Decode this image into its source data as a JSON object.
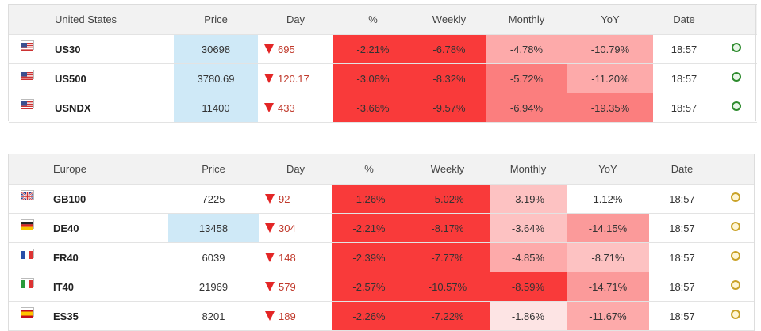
{
  "colors": {
    "price_highlight": "#cfe9f7",
    "strong_red": "#f93a3a",
    "red": "#fb4d4d",
    "mid_red": "#fb7e7e",
    "light_red": "#fdaaaa",
    "pale_red": "#fde4e4",
    "white": "#ffffff",
    "smile_green": "#2c8a2c",
    "smile_yellow": "#c9a227"
  },
  "tables": [
    {
      "region": "United States",
      "headers": {
        "price": "Price",
        "day": "Day",
        "pct": "%",
        "weekly": "Weekly",
        "monthly": "Monthly",
        "yoy": "YoY",
        "date": "Date"
      },
      "rows": [
        {
          "flag": "us-flag-icon",
          "symbol": "US30",
          "price": "30698",
          "day": "695",
          "pct": "-2.21%",
          "weekly": "-6.78%",
          "monthly": "-4.78%",
          "yoy": "-10.79%",
          "date": "18:57",
          "status": "green",
          "price_hl": true,
          "c_pct": "#f93a3a",
          "c_weekly": "#f93a3a",
          "c_monthly": "#fdaaaa",
          "c_yoy": "#fdaaaa"
        },
        {
          "flag": "us-flag-icon",
          "symbol": "US500",
          "price": "3780.69",
          "day": "120.17",
          "pct": "-3.08%",
          "weekly": "-8.32%",
          "monthly": "-5.72%",
          "yoy": "-11.20%",
          "date": "18:57",
          "status": "green",
          "price_hl": true,
          "c_pct": "#f93a3a",
          "c_weekly": "#f93a3a",
          "c_monthly": "#fb7e7e",
          "c_yoy": "#fdaaaa"
        },
        {
          "flag": "us-flag-icon",
          "symbol": "USNDX",
          "price": "11400",
          "day": "433",
          "pct": "-3.66%",
          "weekly": "-9.57%",
          "monthly": "-6.94%",
          "yoy": "-19.35%",
          "date": "18:57",
          "status": "green",
          "price_hl": true,
          "c_pct": "#f93a3a",
          "c_weekly": "#f93a3a",
          "c_monthly": "#fb7e7e",
          "c_yoy": "#fb7e7e"
        }
      ]
    },
    {
      "region": "Europe",
      "headers": {
        "price": "Price",
        "day": "Day",
        "pct": "%",
        "weekly": "Weekly",
        "monthly": "Monthly",
        "yoy": "YoY",
        "date": "Date"
      },
      "rows": [
        {
          "flag": "uk-flag-icon",
          "symbol": "GB100",
          "price": "7225",
          "day": "92",
          "pct": "-1.26%",
          "weekly": "-5.02%",
          "monthly": "-3.19%",
          "yoy": "1.12%",
          "date": "18:57",
          "status": "yellow",
          "price_hl": false,
          "c_pct": "#f93a3a",
          "c_weekly": "#f93a3a",
          "c_monthly": "#fdc2c2",
          "c_yoy": "#ffffff"
        },
        {
          "flag": "de-flag-icon",
          "symbol": "DE40",
          "price": "13458",
          "day": "304",
          "pct": "-2.21%",
          "weekly": "-8.17%",
          "monthly": "-3.64%",
          "yoy": "-14.15%",
          "date": "18:57",
          "status": "yellow",
          "price_hl": true,
          "c_pct": "#f93a3a",
          "c_weekly": "#f93a3a",
          "c_monthly": "#fdc2c2",
          "c_yoy": "#fb9a9a"
        },
        {
          "flag": "fr-flag-icon",
          "symbol": "FR40",
          "price": "6039",
          "day": "148",
          "pct": "-2.39%",
          "weekly": "-7.77%",
          "monthly": "-4.85%",
          "yoy": "-8.71%",
          "date": "18:57",
          "status": "yellow",
          "price_hl": false,
          "c_pct": "#f93a3a",
          "c_weekly": "#f93a3a",
          "c_monthly": "#fdaaaa",
          "c_yoy": "#fdc2c2"
        },
        {
          "flag": "it-flag-icon",
          "symbol": "IT40",
          "price": "21969",
          "day": "579",
          "pct": "-2.57%",
          "weekly": "-10.57%",
          "monthly": "-8.59%",
          "yoy": "-14.71%",
          "date": "18:57",
          "status": "yellow",
          "price_hl": false,
          "c_pct": "#f93a3a",
          "c_weekly": "#f93a3a",
          "c_monthly": "#f93a3a",
          "c_yoy": "#fb9a9a"
        },
        {
          "flag": "es-flag-icon",
          "symbol": "ES35",
          "price": "8201",
          "day": "189",
          "pct": "-2.26%",
          "weekly": "-7.22%",
          "monthly": "-1.86%",
          "yoy": "-11.67%",
          "date": "18:57",
          "status": "yellow",
          "price_hl": false,
          "c_pct": "#f93a3a",
          "c_weekly": "#f93a3a",
          "c_monthly": "#fde4e4",
          "c_yoy": "#fdaaaa"
        }
      ]
    }
  ]
}
